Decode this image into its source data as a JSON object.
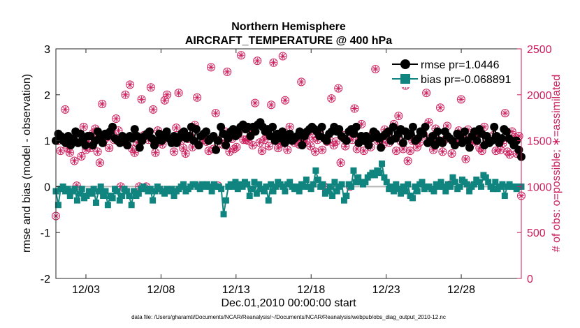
{
  "chart_data": {
    "type": "line",
    "title_line1": "Northern Hemisphere",
    "title_line2": "AIRCRAFT_TEMPERATURE @ 400 hPa",
    "xlabel": "Dec.01,2010 00:00:00 start",
    "ylabel_left": "rmse and bias (model - observation)",
    "ylabel_right": "# of obs: o=possible; ∗=assimilated",
    "footer": "data file: /Users/gharamti/Documents/NCAR/Reanalysis/~/Documents/NCAR/Reanalysis/webpub/obs_diag_output_2010-12.nc",
    "x_range": [
      1,
      32
    ],
    "ylim_left": [
      -2,
      3
    ],
    "ylim_right": [
      0,
      2500
    ],
    "x_ticks": [
      {
        "value": 3,
        "label": "12/03"
      },
      {
        "value": 8,
        "label": "12/08"
      },
      {
        "value": 13,
        "label": "12/13"
      },
      {
        "value": 18,
        "label": "12/18"
      },
      {
        "value": 23,
        "label": "12/23"
      },
      {
        "value": 28,
        "label": "12/28"
      }
    ],
    "yticks_left": [
      "-2",
      "-1",
      "0",
      "1",
      "2",
      "3"
    ],
    "yticks_right": [
      "0",
      "500",
      "1000",
      "1500",
      "2000",
      "2500"
    ],
    "colors": {
      "rmse": "#000000",
      "bias": "#108580",
      "obs": "#cc1c5c",
      "zero_line": "#b4b4b4"
    },
    "legend": [
      {
        "name": "rmse pr=1.0446",
        "series": "rmse"
      },
      {
        "name": "bias pr=-0.068891",
        "series": "bias"
      }
    ],
    "series": [
      {
        "name": "rmse",
        "values": [
          1.0,
          1.15,
          1.1,
          1.0,
          0.95,
          1.1,
          0.9,
          1.05,
          1.2,
          0.95,
          1.15,
          1.05,
          0.9,
          1.1,
          1.1,
          0.9,
          1.0,
          1.2,
          1.05,
          0.95,
          1.15,
          1.1,
          1.2,
          1.3,
          1.05,
          1.0,
          0.95,
          1.1,
          1.0,
          0.9,
          1.1,
          1.05,
          1.25,
          1.1,
          0.85,
          1.0,
          1.1,
          1.15,
          1.2,
          1.05,
          0.9,
          1.0,
          1.15,
          1.0,
          1.1,
          1.2,
          1.05,
          0.95,
          1.1,
          0.95,
          1.05,
          1.15,
          1.2,
          1.05,
          1.1,
          1.3,
          1.0,
          1.25,
          0.9,
          1.1,
          1.15,
          1.2,
          1.0,
          1.05,
          1.1,
          0.8,
          1.0,
          1.3,
          1.15,
          0.9,
          1.05,
          1.2,
          1.25,
          1.1,
          1.15,
          1.3,
          1.35,
          1.25,
          1.3,
          1.1,
          1.3,
          1.2,
          1.35,
          1.4,
          1.3,
          1.2,
          1.25,
          1.1,
          1.3,
          1.0,
          1.15,
          1.05,
          1.2,
          0.95,
          1.1,
          1.15,
          1.0,
          1.05,
          1.1,
          1.2,
          0.9,
          1.1,
          1.2,
          1.25,
          1.3,
          1.25,
          1.2,
          1.1,
          1.3,
          1.05,
          1.0,
          1.15,
          1.2,
          1.3,
          1.2,
          1.25,
          1.1,
          1.05,
          1.0,
          1.2,
          1.25,
          1.15,
          1.3,
          0.95,
          1.1,
          1.0,
          1.1,
          0.9,
          1.05,
          1.2,
          1.15,
          1.05,
          0.85,
          1.1,
          1.15,
          1.2,
          1.0,
          1.3,
          1.05,
          1.15,
          1.25,
          0.95,
          1.2,
          1.1,
          1.15,
          1.3,
          1.0,
          1.05,
          1.2,
          1.15,
          1.3,
          0.95,
          1.0,
          1.1,
          0.9,
          1.2,
          1.0,
          0.95,
          1.2,
          1.1,
          1.05,
          1.0,
          0.9,
          1.15,
          1.1,
          0.95,
          1.2,
          1.0,
          0.85,
          1.1,
          1.2,
          1.0,
          1.25,
          1.15,
          0.9,
          1.1,
          0.95,
          1.0,
          1.3,
          1.1,
          0.95,
          1.05,
          1.25,
          1.2,
          1.05,
          1.0,
          0.9,
          1.0,
          0.8,
          0.65
        ]
      },
      {
        "name": "bias",
        "values": [
          -0.1,
          -0.4,
          -0.05,
          0.0,
          -0.1,
          -0.05,
          -0.2,
          -0.1,
          -0.05,
          -0.3,
          -0.15,
          -0.05,
          -0.25,
          -0.2,
          -0.1,
          -0.15,
          -0.05,
          -0.35,
          -0.1,
          0.0,
          -0.2,
          -0.1,
          -0.4,
          -0.2,
          -0.25,
          -0.05,
          -0.1,
          -0.3,
          -0.2,
          -0.05,
          -0.1,
          -0.2,
          -0.4,
          -0.1,
          -0.2,
          -0.15,
          -0.05,
          0.0,
          -0.05,
          -0.1,
          -0.05,
          -0.3,
          -0.1,
          0.0,
          -0.05,
          -0.1,
          -0.15,
          -0.05,
          -0.1,
          -0.05,
          -0.2,
          -0.1,
          -0.05,
          0.0,
          0.05,
          -0.1,
          -0.05,
          0.0,
          0.05,
          0.05,
          0.0,
          -0.05,
          0.05,
          0.0,
          0.05,
          0.0,
          -0.1,
          0.05,
          0.0,
          0.0,
          -0.05,
          -0.6,
          -0.3,
          0.0,
          0.05,
          0.0,
          0.1,
          -0.05,
          0.05,
          0.0,
          0.1,
          0.05,
          -0.2,
          -0.05,
          0.1,
          -0.15,
          0.05,
          -0.05,
          -0.1,
          0.0,
          -0.3,
          0.05,
          -0.1,
          0.0,
          0.1,
          0.05,
          0.0,
          -0.1,
          0.05,
          0.1,
          0.0,
          -0.05,
          0.0,
          -0.1,
          0.05,
          0.0,
          0.15,
          0.0,
          -0.05,
          0.05,
          0.35,
          0.15,
          0.0,
          0.05,
          -0.15,
          -0.1,
          0.0,
          -0.2,
          0.1,
          -0.1,
          0.0,
          0.05,
          -0.3,
          -0.2,
          0.05,
          0.0,
          0.35,
          0.1,
          0.2,
          0.1,
          0.05,
          0.1,
          0.2,
          0.25,
          0.3,
          0.25,
          0.35,
          0.3,
          0.5,
          0.2,
          0.1,
          -0.05,
          0.0,
          -0.1,
          0.05,
          -0.05,
          -0.15,
          0.0,
          -0.1,
          0.05,
          -0.2,
          -0.25,
          0.0,
          -0.1,
          0.05,
          0.1,
          -0.05,
          0.0,
          0.0,
          -0.05,
          -0.1,
          0.05,
          0.0,
          0.1,
          0.0,
          -0.1,
          0.05,
          0.0,
          0.2,
          0.1,
          -0.05,
          0.0,
          0.15,
          0.1,
          0.05,
          -0.1,
          0.0,
          0.05,
          0.15,
          0.1,
          0.0,
          0.25,
          0.2,
          0.1,
          0.0,
          -0.05,
          0.1,
          -0.05,
          0.0,
          0.05,
          -0.2,
          0.0,
          0.05,
          0.0,
          0.0,
          -0.05,
          0.0,
          0.0
        ]
      },
      {
        "name": "obs_possible",
        "values": [
          680,
          1500,
          1390,
          1510,
          1840,
          1420,
          1370,
          1480,
          1280,
          1010,
          1560,
          1330,
          1650,
          1400,
          1490,
          1420,
          1580,
          1630,
          1380,
          1260,
          1900,
          1510,
          1540,
          1420,
          1600,
          1510,
          1740,
          1610,
          1000,
          1490,
          2000,
          1520,
          2110,
          1410,
          1370,
          1480,
          1000,
          1950,
          1560,
          1000,
          1510,
          2080,
          1840,
          1370,
          1610,
          1490,
          1460,
          1940,
          2000,
          1520,
          1500,
          1380,
          1640,
          2020,
          1500,
          1420,
          1360,
          1520,
          1550,
          1430,
          1670,
          1970,
          1000,
          1520,
          1510,
          1490,
          1390,
          2300,
          1410,
          1800,
          1010,
          1510,
          1460,
          1600,
          2250,
          1380,
          1520,
          1410,
          1430,
          1600,
          2430,
          1510,
          1510,
          1500,
          1600,
          1450,
          1910,
          2370,
          1480,
          1390,
          1510,
          1550,
          1440,
          1890,
          2350,
          1560,
          1420,
          1470,
          2420,
          1940,
          1400,
          1650,
          1500,
          1480,
          1510,
          1460,
          2140,
          1500,
          1490,
          1600,
          1440,
          1530,
          1380,
          1510,
          1580,
          1400,
          1000,
          1490,
          1510,
          1960,
          1450,
          1490,
          2070,
          1260,
          1560,
          1440,
          1520,
          1000,
          1510,
          1850,
          1410,
          1500,
          1680,
          1390,
          1490,
          1520,
          1430,
          1580,
          2280,
          1500,
          1500,
          1450,
          1620,
          1510,
          1480,
          1520,
          1680,
          1390,
          1770,
          1490,
          1410,
          2100,
          1280,
          1390,
          1500,
          1500,
          1430,
          1480,
          1600,
          1560,
          2020,
          1700,
          1500,
          1400,
          1630,
          1500,
          1860,
          1380,
          1510,
          1660,
          1020,
          1360,
          1480,
          1500,
          1610,
          1950,
          1540,
          1300,
          1620,
          1000,
          1480,
          1500,
          1560,
          1420,
          1390,
          1650,
          1500,
          1490,
          2170,
          1560,
          1390,
          1500,
          1400,
          1470,
          1800,
          1380,
          1350,
          1600,
          1540,
          1360,
          1550,
          900
        ]
      }
    ]
  }
}
